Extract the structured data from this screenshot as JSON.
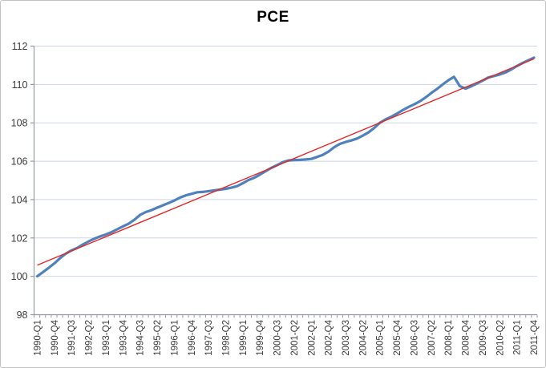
{
  "chart_data": {
    "type": "line",
    "title": "PCE",
    "xlabel": "",
    "ylabel": "",
    "ylim": [
      98,
      112
    ],
    "y_ticks": [
      98,
      100,
      102,
      104,
      106,
      108,
      110,
      112
    ],
    "grid": true,
    "legend_position": "none",
    "x_tick_interval": 3,
    "x": [
      "1990-Q1",
      "1990-Q2",
      "1990-Q3",
      "1990-Q4",
      "1991-Q1",
      "1991-Q2",
      "1991-Q3",
      "1991-Q4",
      "1992-Q1",
      "1992-Q2",
      "1992-Q3",
      "1992-Q4",
      "1993-Q1",
      "1993-Q2",
      "1993-Q3",
      "1993-Q4",
      "1994-Q1",
      "1994-Q2",
      "1994-Q3",
      "1994-Q4",
      "1995-Q1",
      "1995-Q2",
      "1995-Q3",
      "1995-Q4",
      "1996-Q1",
      "1996-Q2",
      "1996-Q3",
      "1996-Q4",
      "1997-Q1",
      "1997-Q2",
      "1997-Q3",
      "1997-Q4",
      "1998-Q1",
      "1998-Q2",
      "1998-Q3",
      "1998-Q4",
      "1999-Q1",
      "1999-Q2",
      "1999-Q3",
      "1999-Q4",
      "2000-Q1",
      "2000-Q2",
      "2000-Q3",
      "2000-Q4",
      "2001-Q1",
      "2001-Q2",
      "2001-Q3",
      "2001-Q4",
      "2002-Q1",
      "2002-Q2",
      "2002-Q3",
      "2002-Q4",
      "2003-Q1",
      "2003-Q2",
      "2003-Q3",
      "2003-Q4",
      "2004-Q1",
      "2004-Q2",
      "2004-Q3",
      "2004-Q4",
      "2005-Q1",
      "2005-Q2",
      "2005-Q3",
      "2005-Q4",
      "2006-Q1",
      "2006-Q2",
      "2006-Q3",
      "2006-Q4",
      "2007-Q1",
      "2007-Q2",
      "2007-Q3",
      "2007-Q4",
      "2008-Q1",
      "2008-Q2",
      "2008-Q3",
      "2008-Q4",
      "2009-Q1",
      "2009-Q2",
      "2009-Q3",
      "2009-Q4",
      "2010-Q1",
      "2010-Q2",
      "2010-Q3",
      "2010-Q4",
      "2011-Q1",
      "2011-Q2",
      "2011-Q3",
      "2011-Q4"
    ],
    "series": [
      {
        "name": "PCE",
        "color": "#4f81bd",
        "stroke_width": 3.2,
        "values": [
          100.0,
          100.22,
          100.44,
          100.68,
          100.95,
          101.18,
          101.35,
          101.48,
          101.66,
          101.82,
          101.96,
          102.08,
          102.18,
          102.3,
          102.45,
          102.6,
          102.74,
          102.95,
          103.2,
          103.35,
          103.45,
          103.58,
          103.7,
          103.82,
          103.95,
          104.1,
          104.22,
          104.3,
          104.38,
          104.4,
          104.44,
          104.48,
          104.52,
          104.56,
          104.62,
          104.7,
          104.85,
          105.02,
          105.14,
          105.3,
          105.48,
          105.65,
          105.8,
          105.95,
          106.04,
          106.06,
          106.07,
          106.09,
          106.12,
          106.22,
          106.33,
          106.5,
          106.73,
          106.9,
          107.0,
          107.08,
          107.18,
          107.33,
          107.5,
          107.73,
          108.0,
          108.18,
          108.32,
          108.48,
          108.66,
          108.82,
          108.96,
          109.12,
          109.32,
          109.55,
          109.76,
          110.0,
          110.22,
          110.4,
          109.92,
          109.78,
          109.9,
          110.05,
          110.2,
          110.36,
          110.44,
          110.52,
          110.62,
          110.78,
          110.96,
          111.12,
          111.26,
          111.4
        ]
      },
      {
        "name": "Linear trend",
        "type": "trendline",
        "color": "#e32726",
        "stroke_width": 1.4,
        "start_value": 100.58,
        "end_value": 111.34
      }
    ],
    "style": {
      "gridline_color": "#ccd5e2",
      "axis_color": "#969ba3",
      "tick_color": "#969ba3",
      "label_color": "#3b3b3b",
      "title_color": "#000000",
      "background": "#ffffff",
      "border_color": "#c3c3c3"
    }
  }
}
